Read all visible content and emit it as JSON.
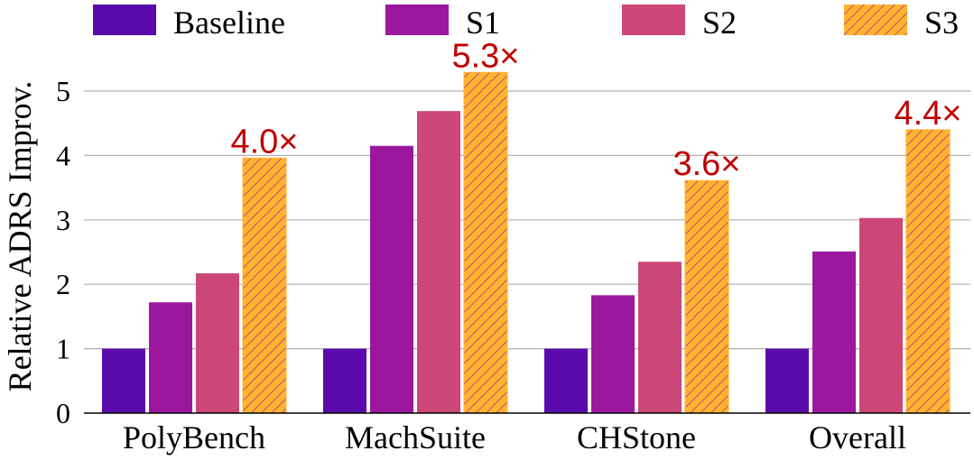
{
  "chart_data": {
    "type": "bar",
    "ylabel": "Relative ADRS Improv.",
    "xlabel": "",
    "ylim": [
      0,
      5.5
    ],
    "yticks": [
      "0",
      "1",
      "2",
      "3",
      "4",
      "5"
    ],
    "grid": "horizontal",
    "legend_position": "top",
    "categories": [
      "PolyBench",
      "MachSuite",
      "CHStone",
      "Overall"
    ],
    "series": [
      {
        "name": "Baseline",
        "values": [
          1.0,
          1.0,
          1.0,
          1.0
        ],
        "color": "#5a0aaa",
        "hatch": false
      },
      {
        "name": "S1",
        "values": [
          1.72,
          4.15,
          1.83,
          2.51
        ],
        "color": "#9c179e",
        "hatch": false
      },
      {
        "name": "S2",
        "values": [
          2.17,
          4.69,
          2.35,
          3.03
        ],
        "color": "#cc4778",
        "hatch": false
      },
      {
        "name": "S3",
        "values": [
          3.96,
          5.29,
          3.61,
          4.4
        ],
        "color": "#fdb42f",
        "hatch": true
      }
    ],
    "annotations": [
      "4.0×",
      "5.3×",
      "3.6×",
      "4.4×"
    ],
    "annotation_color": "#c00000"
  }
}
